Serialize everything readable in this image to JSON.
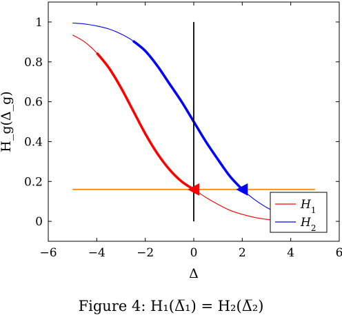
{
  "caption": "Figure 4:  H₁(Δ̅₁) = H₂(Δ̅₂)",
  "chart_data": {
    "type": "line",
    "xlabel": "Δ",
    "ylabel": "H_g(Δ_g)",
    "xlim": [
      -6,
      6
    ],
    "ylim": [
      -0.1,
      1.1
    ],
    "xticks": [
      -6,
      -4,
      -2,
      0,
      2,
      4,
      6
    ],
    "yticks": [
      0,
      0.2,
      0.4,
      0.6,
      0.8,
      1
    ],
    "xtick_labels": [
      "−6",
      "−4",
      "−2",
      "0",
      "2",
      "4",
      "6"
    ],
    "ytick_labels": [
      "0",
      "0.2",
      "0.4",
      "0.6",
      "0.8",
      "1"
    ],
    "grid": false,
    "legend_position": "bottom-right",
    "series": [
      {
        "name": "H1",
        "label_base": "H",
        "label_sub": "1",
        "color": "#ff0000",
        "x": [
          -5,
          -4.5,
          -4,
          -3.5,
          -3,
          -2.5,
          -2,
          -1.5,
          -1,
          -0.5,
          0,
          0.5,
          1,
          1.5,
          2,
          2.5,
          3,
          3.5,
          4,
          4.5,
          5
        ],
        "y": [
          0.935,
          0.9,
          0.845,
          0.77,
          0.67,
          0.555,
          0.44,
          0.34,
          0.26,
          0.2,
          0.16,
          0.12,
          0.085,
          0.055,
          0.035,
          0.02,
          0.01,
          0.005,
          0.002,
          0.001,
          0.0
        ],
        "highlight_x": [
          -4,
          0
        ]
      },
      {
        "name": "H2",
        "label_base": "H",
        "label_sub": "2",
        "color": "#0000ff",
        "x": [
          -5,
          -4.5,
          -4,
          -3.5,
          -3,
          -2.5,
          -2,
          -1.5,
          -1,
          -0.5,
          0,
          0.5,
          1,
          1.5,
          2,
          2.5,
          3,
          3.5,
          4,
          4.5,
          5
        ],
        "y": [
          0.995,
          0.99,
          0.98,
          0.965,
          0.94,
          0.905,
          0.855,
          0.78,
          0.69,
          0.6,
          0.5,
          0.4,
          0.31,
          0.225,
          0.16,
          0.11,
          0.07,
          0.04,
          0.02,
          0.01,
          0.005
        ],
        "highlight_x": [
          -2.5,
          2
        ]
      },
      {
        "color": "#ff8c00",
        "x": [
          -5,
          5
        ],
        "y": [
          0.16,
          0.16
        ]
      },
      {
        "color": "#000000",
        "x": [
          0,
          0
        ],
        "y": [
          0,
          1
        ]
      }
    ],
    "markers": [
      {
        "x": 0,
        "y": 0.16,
        "shape": "triangle-left",
        "color": "#ff0000"
      },
      {
        "x": 2,
        "y": 0.16,
        "shape": "triangle-left",
        "color": "#0000ff"
      }
    ]
  }
}
